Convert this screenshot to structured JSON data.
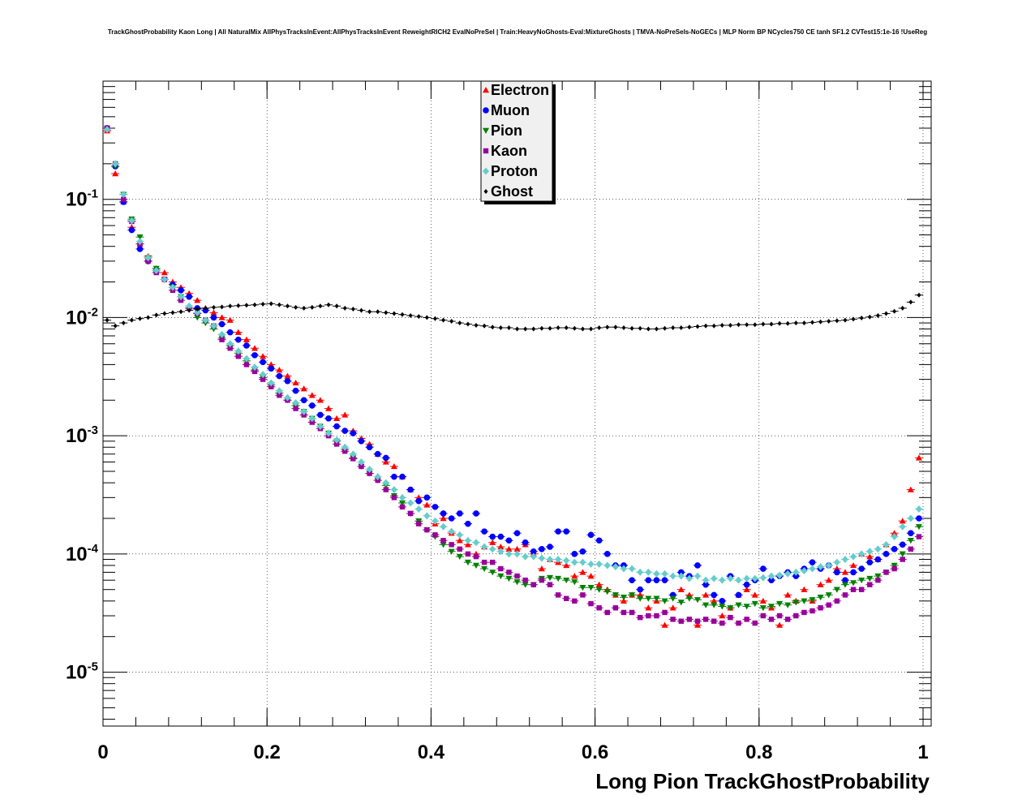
{
  "chart_data": {
    "type": "scatter",
    "title": "TrackGhostProbability Kaon Long | All NaturalMix AllPhysTracksInEvent:AllPhysTracksInEvent ReweightRICH2 EvalNoPreSel | Train:HeavyNoGhosts-Eval:MixtureGhosts | TMVA-NoPreSels-NoGECs | MLP Norm BP NCycles750 CE tanh SF1.2 CVTest15:1e-16 !UseReg",
    "xlabel": "Long Pion TrackGhostProbability",
    "ylabel": "",
    "xlim": [
      0,
      1.0
    ],
    "ylim": [
      3.5e-06,
      1.0
    ],
    "yscale": "log",
    "grid": true,
    "legend_position": "top-center",
    "x_ticks": [
      "0",
      "0.2",
      "0.4",
      "0.6",
      "0.8",
      "1"
    ],
    "y_ticks": [
      {
        "base": "10",
        "exp": "-1"
      },
      {
        "base": "10",
        "exp": "-2"
      },
      {
        "base": "10",
        "exp": "-3"
      },
      {
        "base": "10",
        "exp": "-4"
      },
      {
        "base": "10",
        "exp": "-5"
      }
    ],
    "x": [
      0.005,
      0.015,
      0.025,
      0.035,
      0.045,
      0.055,
      0.065,
      0.075,
      0.085,
      0.095,
      0.105,
      0.115,
      0.125,
      0.135,
      0.145,
      0.155,
      0.165,
      0.175,
      0.185,
      0.195,
      0.205,
      0.215,
      0.225,
      0.235,
      0.245,
      0.255,
      0.265,
      0.275,
      0.285,
      0.295,
      0.305,
      0.315,
      0.325,
      0.335,
      0.345,
      0.355,
      0.365,
      0.375,
      0.385,
      0.395,
      0.405,
      0.415,
      0.425,
      0.435,
      0.445,
      0.455,
      0.465,
      0.475,
      0.485,
      0.495,
      0.505,
      0.515,
      0.525,
      0.535,
      0.545,
      0.555,
      0.565,
      0.575,
      0.585,
      0.595,
      0.605,
      0.615,
      0.625,
      0.635,
      0.645,
      0.655,
      0.665,
      0.675,
      0.685,
      0.695,
      0.705,
      0.715,
      0.725,
      0.735,
      0.745,
      0.755,
      0.765,
      0.775,
      0.785,
      0.795,
      0.805,
      0.815,
      0.825,
      0.835,
      0.845,
      0.855,
      0.865,
      0.875,
      0.885,
      0.895,
      0.905,
      0.915,
      0.925,
      0.935,
      0.945,
      0.955,
      0.965,
      0.975,
      0.985,
      0.995
    ],
    "series": [
      {
        "name": "Electron",
        "color": "#ff0000",
        "marker": "triangle-up",
        "values": [
          0.38,
          0.165,
          0.095,
          0.058,
          0.042,
          0.033,
          0.026,
          0.024,
          0.02,
          0.018,
          0.016,
          0.014,
          0.012,
          0.011,
          0.01,
          0.0095,
          0.0075,
          0.0065,
          0.0055,
          0.0047,
          0.004,
          0.0036,
          0.0032,
          0.0028,
          0.0025,
          0.0022,
          0.002,
          0.0017,
          0.0014,
          0.0015,
          0.0011,
          0.00095,
          0.00085,
          0.0007,
          0.0006,
          0.00055,
          0.00045,
          0.00035,
          0.0003,
          0.00026,
          0.00018,
          0.0002,
          0.00015,
          0.00013,
          0.00012,
          0.0001,
          0.000115,
          0.000125,
          0.000115,
          0.00011,
          0.00011,
          0.00012,
          0.0001,
          7.5e-05,
          9e-05,
          8.5e-05,
          8e-05,
          6.5e-05,
          7e-05,
          6.5e-05,
          5.5e-05,
          5e-05,
          4.5e-05,
          4e-05,
          4.5e-05,
          4.5e-05,
          3.5e-05,
          4e-05,
          2.5e-05,
          3.5e-05,
          5e-05,
          4.5e-05,
          2.5e-05,
          4.5e-05,
          4e-05,
          3e-05,
          3.5e-05,
          4.5e-05,
          5e-05,
          4.5e-05,
          4e-05,
          3.5e-05,
          2.5e-05,
          4.5e-05,
          4e-05,
          5e-05,
          4e-05,
          5.5e-05,
          6e-05,
          7.5e-05,
          7e-05,
          8e-05,
          0.0001,
          9.5e-05,
          9e-05,
          0.00012,
          0.00015,
          0.00019,
          0.00035,
          0.00065
        ]
      },
      {
        "name": "Muon",
        "color": "#0000ff",
        "marker": "circle",
        "values": [
          0.4,
          0.19,
          0.095,
          0.055,
          0.038,
          0.03,
          0.025,
          0.021,
          0.019,
          0.017,
          0.015,
          0.012,
          0.0115,
          0.01,
          0.0088,
          0.0075,
          0.0065,
          0.0058,
          0.0048,
          0.0042,
          0.0037,
          0.0032,
          0.0029,
          0.0024,
          0.002,
          0.0018,
          0.0015,
          0.0014,
          0.0012,
          0.0011,
          0.00105,
          0.0009,
          0.0008,
          0.0007,
          0.00065,
          0.00045,
          0.00045,
          0.00035,
          0.00028,
          0.0003,
          0.00025,
          0.00022,
          0.0002,
          0.00022,
          0.00018,
          0.00022,
          0.000155,
          0.00014,
          0.00014,
          0.00013,
          0.00015,
          0.000125,
          0.000105,
          0.00011,
          0.000115,
          0.000155,
          0.000155,
          0.0001,
          0.000105,
          0.000145,
          0.00013,
          0.0001,
          8e-05,
          8e-05,
          6e-05,
          5e-05,
          6e-05,
          6e-05,
          6e-05,
          4.5e-05,
          7e-05,
          6.5e-05,
          8e-05,
          5.5e-05,
          4.5e-05,
          4e-05,
          6.5e-05,
          4.5e-05,
          5.5e-05,
          6e-05,
          7.5e-05,
          6e-05,
          6.5e-05,
          7e-05,
          6.5e-05,
          7.5e-05,
          8.5e-05,
          7.5e-05,
          8e-05,
          7e-05,
          6e-05,
          7e-05,
          7.5e-05,
          8.5e-05,
          9e-05,
          0.0001,
          0.00011,
          0.00012,
          0.00015,
          0.0002
        ]
      },
      {
        "name": "Pion",
        "color": "#008000",
        "marker": "triangle-down",
        "values": [
          0.4,
          0.19,
          0.11,
          0.068,
          0.048,
          0.032,
          0.026,
          0.021,
          0.018,
          0.015,
          0.012,
          0.01,
          0.009,
          0.008,
          0.0067,
          0.0058,
          0.005,
          0.0043,
          0.0036,
          0.0031,
          0.0027,
          0.0023,
          0.002,
          0.0018,
          0.0016,
          0.0014,
          0.0012,
          0.00105,
          0.0009,
          0.00077,
          0.00065,
          0.00055,
          0.00048,
          0.00042,
          0.00038,
          0.00031,
          0.00027,
          0.00022,
          0.00019,
          0.00016,
          0.00014,
          0.00012,
          0.000105,
          9.5e-05,
          8.5e-05,
          8e-05,
          7.5e-05,
          7e-05,
          6.5e-05,
          6.2e-05,
          5.8e-05,
          5.5e-05,
          5.5e-05,
          6.2e-05,
          6.3e-05,
          6.2e-05,
          6e-05,
          5.8e-05,
          5.2e-05,
          5.2e-05,
          5e-05,
          4.8e-05,
          4.5e-05,
          4.3e-05,
          4.5e-05,
          4.2e-05,
          4.2e-05,
          4.2e-05,
          4e-05,
          4.2e-05,
          3.9e-05,
          4.2e-05,
          4.1e-05,
          3.7e-05,
          3.7e-05,
          3.6e-05,
          3.5e-05,
          3.7e-05,
          3.6e-05,
          3.8e-05,
          3.5e-05,
          3.6e-05,
          3.8e-05,
          3.7e-05,
          3.9e-05,
          4e-05,
          4.1e-05,
          4.3e-05,
          4.5e-05,
          5e-05,
          5.5e-05,
          5.7e-05,
          6e-05,
          6.2e-05,
          6.5e-05,
          7e-05,
          8e-05,
          0.0001,
          0.00013,
          0.00017
        ]
      },
      {
        "name": "Kaon",
        "color": "#990099",
        "marker": "square",
        "values": [
          0.4,
          0.2,
          0.1,
          0.065,
          0.042,
          0.03,
          0.024,
          0.021,
          0.017,
          0.014,
          0.012,
          0.0108,
          0.0095,
          0.0085,
          0.0065,
          0.0055,
          0.0047,
          0.004,
          0.0035,
          0.003,
          0.0026,
          0.0022,
          0.002,
          0.0017,
          0.0015,
          0.0013,
          0.00115,
          0.001,
          0.00085,
          0.00074,
          0.00064,
          0.00055,
          0.00048,
          0.00042,
          0.00035,
          0.0003,
          0.00025,
          0.00022,
          0.00018,
          0.00016,
          0.000145,
          0.00013,
          0.00012,
          0.00011,
          0.0001,
          9.5e-05,
          8.5e-05,
          8.5e-05,
          7.5e-05,
          7e-05,
          6.5e-05,
          6e-05,
          5.5e-05,
          6e-05,
          5.5e-05,
          4.5e-05,
          4.2e-05,
          4e-05,
          4.5e-05,
          3.8e-05,
          3.5e-05,
          3.2e-05,
          3.5e-05,
          3.2e-05,
          3.2e-05,
          2.9e-05,
          3e-05,
          3e-05,
          3.2e-05,
          2.8e-05,
          2.7e-05,
          2.8e-05,
          2.7e-05,
          2.8e-05,
          2.7e-05,
          2.6e-05,
          2.9e-05,
          2.6e-05,
          2.8e-05,
          2.6e-05,
          3e-05,
          2.8e-05,
          3e-05,
          2.8e-05,
          3e-05,
          3.2e-05,
          3.3e-05,
          3.5e-05,
          3.7e-05,
          4e-05,
          4.5e-05,
          5e-05,
          5e-05,
          5.5e-05,
          6e-05,
          7e-05,
          7.5e-05,
          9e-05,
          0.00011,
          0.00014
        ]
      },
      {
        "name": "Proton",
        "color": "#66cccc",
        "marker": "diamond",
        "values": [
          0.39,
          0.2,
          0.11,
          0.066,
          0.044,
          0.032,
          0.025,
          0.021,
          0.018,
          0.015,
          0.0125,
          0.011,
          0.0095,
          0.0085,
          0.0072,
          0.006,
          0.0052,
          0.0045,
          0.0038,
          0.0033,
          0.0028,
          0.0024,
          0.0021,
          0.0019,
          0.0016,
          0.0014,
          0.0012,
          0.00105,
          0.00092,
          0.0008,
          0.0007,
          0.0006,
          0.00052,
          0.00045,
          0.0004,
          0.00035,
          0.0003,
          0.00027,
          0.00024,
          0.00021,
          0.00019,
          0.00017,
          0.000155,
          0.000145,
          0.00013,
          0.000125,
          0.000115,
          0.00011,
          0.000105,
          0.0001,
          0.0001,
          9.5e-05,
          9.5e-05,
          9.2e-05,
          9e-05,
          9e-05,
          8.8e-05,
          8.5e-05,
          8.5e-05,
          8.2e-05,
          8.2e-05,
          8e-05,
          7.8e-05,
          7.5e-05,
          7.5e-05,
          7e-05,
          7e-05,
          6.8e-05,
          6.8e-05,
          6.5e-05,
          6.5e-05,
          6.2e-05,
          6.5e-05,
          6e-05,
          6.2e-05,
          6e-05,
          6.2e-05,
          6e-05,
          6.2e-05,
          6.2e-05,
          6.3e-05,
          6.5e-05,
          6.6e-05,
          6.8e-05,
          7e-05,
          7.2e-05,
          7.5e-05,
          7.8e-05,
          8e-05,
          8.5e-05,
          9e-05,
          9.5e-05,
          0.0001,
          0.000105,
          0.00011,
          0.00012,
          0.00014,
          0.00017,
          0.0002,
          0.00024
        ]
      },
      {
        "name": "Ghost",
        "color": "#000000",
        "marker": "diamond-small",
        "values": [
          0.0095,
          0.0085,
          0.009,
          0.0095,
          0.0098,
          0.01,
          0.0105,
          0.0108,
          0.011,
          0.0112,
          0.0115,
          0.0118,
          0.012,
          0.0122,
          0.0123,
          0.0125,
          0.0126,
          0.0127,
          0.0128,
          0.013,
          0.0131,
          0.0128,
          0.0125,
          0.0122,
          0.012,
          0.0122,
          0.0125,
          0.0128,
          0.0125,
          0.012,
          0.0118,
          0.0115,
          0.0112,
          0.0112,
          0.011,
          0.0108,
          0.0106,
          0.0104,
          0.0102,
          0.01,
          0.0098,
          0.0095,
          0.0093,
          0.009,
          0.0088,
          0.0086,
          0.0085,
          0.0083,
          0.0082,
          0.0082,
          0.008,
          0.008,
          0.008,
          0.0081,
          0.0081,
          0.0082,
          0.0082,
          0.0081,
          0.008,
          0.008,
          0.0082,
          0.0083,
          0.0083,
          0.0082,
          0.0081,
          0.0081,
          0.008,
          0.008,
          0.0081,
          0.0082,
          0.0082,
          0.0083,
          0.0084,
          0.0085,
          0.0085,
          0.0086,
          0.0086,
          0.0087,
          0.0087,
          0.0087,
          0.0088,
          0.0088,
          0.0089,
          0.0089,
          0.009,
          0.009,
          0.0091,
          0.0092,
          0.0093,
          0.0094,
          0.0095,
          0.0097,
          0.0099,
          0.0101,
          0.0104,
          0.0108,
          0.0113,
          0.012,
          0.0135,
          0.0155
        ]
      }
    ]
  }
}
